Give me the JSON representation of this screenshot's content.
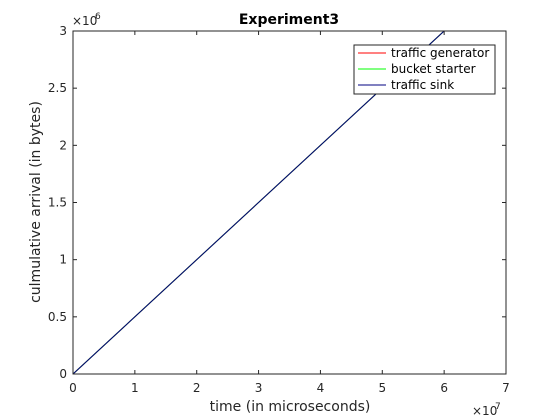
{
  "chart_data": {
    "type": "line",
    "title": "Experiment3",
    "xlabel": "time (in microseconds)",
    "ylabel": "culmulative arrival (in bytes)",
    "x_multiplier": {
      "base": "×10",
      "exponent": "7"
    },
    "y_multiplier": {
      "base": "×10",
      "exponent": "6"
    },
    "xlim": [
      0,
      70000000
    ],
    "ylim": [
      0,
      3000000
    ],
    "x_ticks": [
      0,
      10000000,
      20000000,
      30000000,
      40000000,
      50000000,
      60000000,
      70000000
    ],
    "x_tick_labels": [
      "0",
      "1",
      "2",
      "3",
      "4",
      "5",
      "6",
      "7"
    ],
    "y_ticks": [
      0,
      500000,
      1000000,
      1500000,
      2000000,
      2500000,
      3000000
    ],
    "y_tick_labels": [
      "0",
      "0.5",
      "1",
      "1.5",
      "2",
      "2.5",
      "3"
    ],
    "grid": false,
    "legend_position": "top-right",
    "series": [
      {
        "name": "traffic generator",
        "color": "#ff0000",
        "x": [
          0,
          60000000
        ],
        "y": [
          0,
          3000000
        ]
      },
      {
        "name": "bucket starter",
        "color": "#00ff00",
        "x": [
          0,
          60000000
        ],
        "y": [
          0,
          3000000
        ]
      },
      {
        "name": "traffic sink",
        "color": "#000080",
        "x": [
          0,
          60000000
        ],
        "y": [
          0,
          3000000
        ]
      }
    ]
  }
}
